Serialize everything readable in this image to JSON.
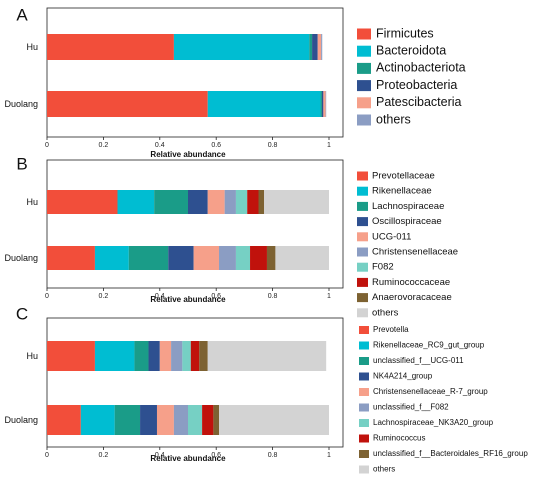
{
  "chart_data": [
    {
      "type": "bar",
      "orientation": "horizontal",
      "stacked": true,
      "panel_label": "A",
      "categories": [
        "Hu",
        "Duolang"
      ],
      "xlabel": "Relative abundance",
      "xlim": [
        0,
        1
      ],
      "xticks": [
        "0",
        "0.2",
        "0.4",
        "0.6",
        "0.8",
        "1"
      ],
      "grid": false,
      "legend_position": "right",
      "series": [
        {
          "name": "Firmicutes",
          "color": "#f24e3a",
          "values": [
            0.45,
            0.57
          ]
        },
        {
          "name": "Bacteroidota",
          "color": "#00bdd2",
          "values": [
            0.48,
            0.4
          ]
        },
        {
          "name": "Actinobacteriota",
          "color": "#1a9c88",
          "values": [
            0.01,
            0.005
          ]
        },
        {
          "name": "Proteobacteria",
          "color": "#2e5090",
          "values": [
            0.02,
            0.005
          ]
        },
        {
          "name": "Patescibacteria",
          "color": "#f6a08a",
          "values": [
            0.012,
            0.008
          ]
        },
        {
          "name": "others",
          "color": "#8b9dc3",
          "values": [
            0.004,
            0.002
          ]
        }
      ]
    },
    {
      "type": "bar",
      "orientation": "horizontal",
      "stacked": true,
      "panel_label": "B",
      "categories": [
        "Hu",
        "Duolang"
      ],
      "xlabel": "Relative abundance",
      "xlim": [
        0,
        1
      ],
      "xticks": [
        "0",
        "0.2",
        "0.4",
        "0.6",
        "0.8",
        "1"
      ],
      "grid": false,
      "legend_position": "right",
      "series": [
        {
          "name": "Prevotellaceae",
          "color": "#f24e3a",
          "values": [
            0.25,
            0.17
          ]
        },
        {
          "name": "Rikenellaceae",
          "color": "#00bdd2",
          "values": [
            0.13,
            0.12
          ]
        },
        {
          "name": "Lachnospiraceae",
          "color": "#1a9c88",
          "values": [
            0.12,
            0.14
          ]
        },
        {
          "name": "Oscillospiraceae",
          "color": "#2e5090",
          "values": [
            0.07,
            0.09
          ]
        },
        {
          "name": "UCG-011",
          "color": "#f6a08a",
          "values": [
            0.06,
            0.09
          ]
        },
        {
          "name": "Christensenellaceae",
          "color": "#8b9dc3",
          "values": [
            0.04,
            0.06
          ]
        },
        {
          "name": "F082",
          "color": "#76d0c4",
          "values": [
            0.04,
            0.05
          ]
        },
        {
          "name": "Ruminococcaceae",
          "color": "#c0120c",
          "values": [
            0.04,
            0.06
          ]
        },
        {
          "name": "Anaerovoracaceae",
          "color": "#7d6232",
          "values": [
            0.02,
            0.03
          ]
        },
        {
          "name": "others",
          "color": "#d3d3d3",
          "values": [
            0.23,
            0.19
          ]
        }
      ]
    },
    {
      "type": "bar",
      "orientation": "horizontal",
      "stacked": true,
      "panel_label": "C",
      "categories": [
        "Hu",
        "Duolang"
      ],
      "xlabel": "Relative abundance",
      "xlim": [
        0,
        1
      ],
      "xticks": [
        "0",
        "0.2",
        "0.4",
        "0.6",
        "0.8",
        "1"
      ],
      "grid": false,
      "legend_position": "right",
      "series": [
        {
          "name": "Prevotella",
          "color": "#f24e3a",
          "values": [
            0.17,
            0.12
          ]
        },
        {
          "name": "Rikenellaceae_RC9_gut_group",
          "color": "#00bdd2",
          "values": [
            0.14,
            0.12
          ]
        },
        {
          "name": "unclassified_f__UCG-011",
          "color": "#1a9c88",
          "values": [
            0.05,
            0.09
          ]
        },
        {
          "name": "NK4A214_group",
          "color": "#2e5090",
          "values": [
            0.04,
            0.06
          ]
        },
        {
          "name": "Christensenellaceae_R-7_group",
          "color": "#f6a08a",
          "values": [
            0.04,
            0.06
          ]
        },
        {
          "name": "unclassified_f__F082",
          "color": "#8b9dc3",
          "values": [
            0.04,
            0.05
          ]
        },
        {
          "name": "Lachnospiraceae_NK3A20_group",
          "color": "#76d0c4",
          "values": [
            0.03,
            0.05
          ]
        },
        {
          "name": "Ruminococcus",
          "color": "#c0120c",
          "values": [
            0.03,
            0.04
          ]
        },
        {
          "name": "unclassified_f__Bacteroidales_RF16_group",
          "color": "#7d6232",
          "values": [
            0.03,
            0.02
          ]
        },
        {
          "name": "others",
          "color": "#d3d3d3",
          "values": [
            0.42,
            0.39
          ]
        }
      ]
    }
  ]
}
